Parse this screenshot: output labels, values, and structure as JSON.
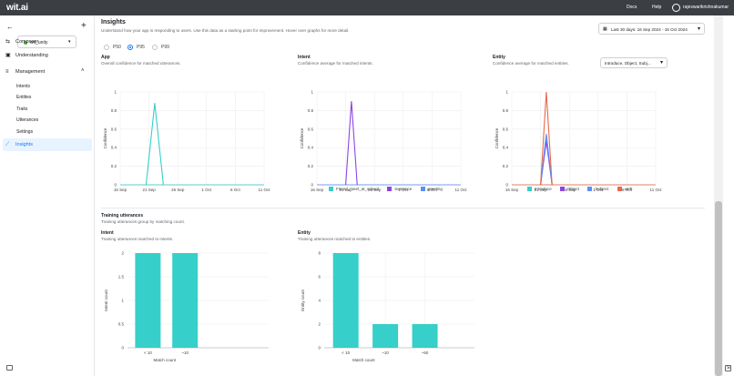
{
  "topbar": {
    "logo": "wit.ai",
    "docs": "Docs",
    "help": "Help",
    "user": "rajeswarikrishnakumar"
  },
  "sidebar": {
    "app_name": "wit_unity",
    "composer": "Composer",
    "understanding": "Understanding",
    "management": "Management",
    "items": [
      "Intents",
      "Entities",
      "Traits",
      "Utterances",
      "Settings"
    ],
    "insights": "Insights"
  },
  "insights": {
    "title": "Insights",
    "description": "Understand how your app is responding to users. Use this data as a starting point for improvement. Hover over graphs for more detail.",
    "date_range": "Last 30 days: 16 Sep 2024 - 15 Oct 2024",
    "percentiles": [
      "P50",
      "P95",
      "P99"
    ],
    "selected_percentile": "P95"
  },
  "confidence": {
    "app": {
      "title": "App",
      "desc": "Overall confidence for matched utterances."
    },
    "intent": {
      "title": "Intent",
      "desc": "Confidence average for matched intents."
    },
    "entity": {
      "title": "Entity",
      "desc": "Confidence average for matched entities.",
      "select": "Introduce, Object, Subj..."
    },
    "ylabel": "Confidence",
    "xticks": [
      "16 Sep",
      "21 Sep",
      "26 Sep",
      "1 Oct",
      "6 Oct",
      "11 Oct"
    ],
    "yticks": [
      "0",
      "0.2",
      "0.4",
      "0.6",
      "0.8",
      "1"
    ]
  },
  "training": {
    "title": "Training utterances",
    "desc": "Training utterances group by matching count.",
    "intent": {
      "title": "Intent",
      "desc": "Training utterances matched to intents.",
      "ylabel": "Intent count"
    },
    "entity": {
      "title": "Entity",
      "desc": "Training utterances matched to entities.",
      "ylabel": "Entity count"
    },
    "xlabel": "Match count"
  },
  "colors": {
    "teal": "#36cfc9",
    "purple": "#8e44e0",
    "blue": "#5b8ff9",
    "orange": "#e8684a"
  },
  "chart_data": [
    {
      "type": "line",
      "title": "App",
      "ylabel": "Confidence",
      "x": [
        "16 Sep",
        "21 Sep",
        "26 Sep",
        "1 Oct",
        "6 Oct",
        "11 Oct"
      ],
      "ylim": [
        0,
        1
      ],
      "series": [
        {
          "values": [
            [
              20.5,
              0
            ],
            [
              22,
              0.88
            ],
            [
              23.5,
              0
            ]
          ]
        }
      ]
    },
    {
      "type": "line",
      "title": "Intent",
      "ylabel": "Confidence",
      "ylim": [
        0,
        1
      ],
      "legend": "bottom",
      "series": [
        {
          "name": "Friend_meet_at_school",
          "color": "#36cfc9"
        },
        {
          "name": "Sentence",
          "color": "#8e44e0",
          "values": [
            [
              21,
              0
            ],
            [
              22,
              0.9
            ],
            [
              23,
              0
            ]
          ]
        },
        {
          "name": "greeting",
          "color": "#5b8ff9"
        }
      ]
    },
    {
      "type": "line",
      "title": "Entity",
      "ylabel": "Confidence",
      "ylim": [
        0,
        1
      ],
      "legend": "bottom",
      "series": [
        {
          "name": "Introduce",
          "color": "#36cfc9",
          "values": [
            [
              21,
              0
            ],
            [
              22,
              0.52
            ],
            [
              23,
              0
            ]
          ]
        },
        {
          "name": "Object",
          "color": "#8e44e0",
          "values": [
            [
              21,
              0
            ],
            [
              22,
              0.47
            ],
            [
              23,
              0
            ]
          ]
        },
        {
          "name": "Subject",
          "color": "#5b8ff9",
          "values": [
            [
              21,
              0
            ],
            [
              22,
              0.55
            ],
            [
              23,
              0
            ]
          ]
        },
        {
          "name": "verb",
          "color": "#e8684a",
          "values": [
            [
              21,
              0
            ],
            [
              22,
              1.0
            ],
            [
              23,
              0
            ]
          ]
        }
      ]
    },
    {
      "type": "bar",
      "title": "Intent",
      "xlabel": "Match count",
      "ylabel": "Intent count",
      "categories": [
        "< 10",
        "~10"
      ],
      "values": [
        2,
        2
      ],
      "yticks": [
        0,
        0.5,
        1,
        1.5,
        2
      ]
    },
    {
      "type": "bar",
      "title": "Entity",
      "xlabel": "Match count",
      "ylabel": "Entity count",
      "categories": [
        "< 10",
        "~10",
        "~50"
      ],
      "values": [
        8,
        2,
        2
      ],
      "yticks": [
        0,
        2,
        4,
        6,
        8
      ]
    }
  ]
}
